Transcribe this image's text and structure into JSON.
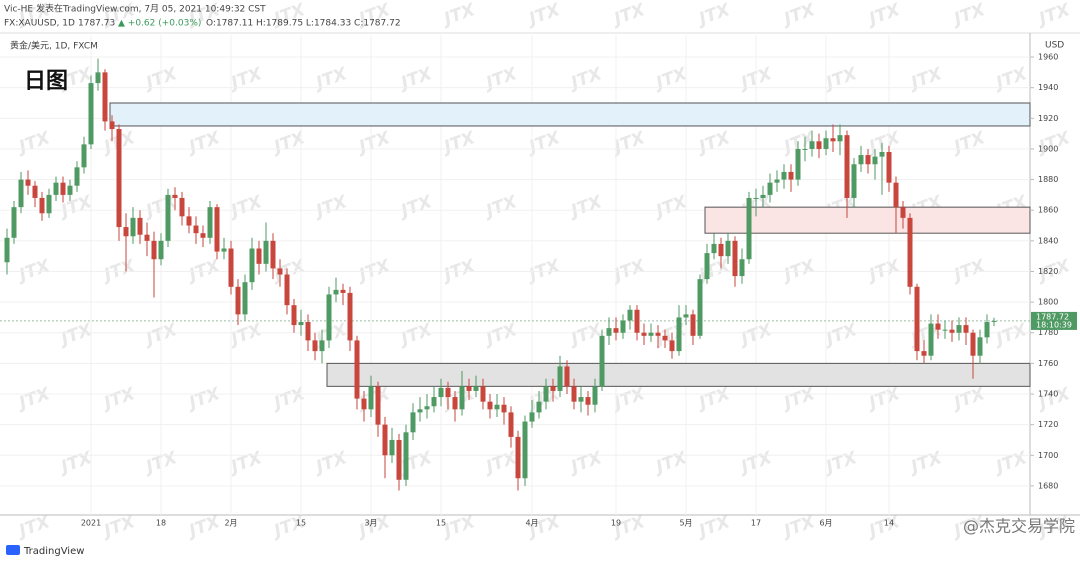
{
  "header": {
    "line1": "Vic-HE 发表在TradingView.com, 7月 05, 2021 10:49:32 CST",
    "symbol": "FX:XAUUSD, 1D",
    "price": "1787.73",
    "change": "▲ +0.62 (+0.03%)",
    "ohlc": "O:1787.11 H:1789.75 L:1784.33 C:1787.72"
  },
  "footer": {
    "logo": "TradingView",
    "credit": "@杰克交易学院"
  },
  "chart_data": {
    "type": "candlestick",
    "title": "黄金/美元, 1D, FXCM",
    "annotation": "日图",
    "y_axis_label": "USD",
    "watermark": "JTX",
    "up_color": "#4f9a63",
    "down_color": "#c9463d",
    "grid": true,
    "last_price": 1787.72,
    "countdown": "18:10:39",
    "ylim": [
      1661,
      1974.4
    ],
    "yticks": [
      1680,
      1700,
      1720,
      1740,
      1760,
      1780,
      1800,
      1820,
      1840,
      1860,
      1880,
      1900,
      1920,
      1940,
      1960
    ],
    "zones": [
      {
        "low": 1915,
        "high": 1930,
        "color": "#e3f1fb"
      },
      {
        "low": 1845,
        "high": 1862,
        "color": "#fbe4e4"
      },
      {
        "low": 1745,
        "high": 1760,
        "color": "#e2e2e2"
      }
    ],
    "categories": [
      null,
      null,
      null,
      null,
      null,
      null,
      null,
      null,
      null,
      null,
      null,
      null,
      "2021",
      null,
      null,
      null,
      null,
      null,
      null,
      null,
      null,
      null,
      "18",
      null,
      null,
      null,
      null,
      null,
      null,
      null,
      null,
      null,
      "2月",
      null,
      null,
      null,
      null,
      null,
      null,
      null,
      null,
      null,
      "15",
      null,
      null,
      null,
      null,
      null,
      null,
      null,
      null,
      null,
      "3月",
      null,
      null,
      null,
      null,
      null,
      null,
      null,
      null,
      null,
      "15",
      null,
      null,
      null,
      null,
      null,
      null,
      null,
      null,
      null,
      null,
      null,
      null,
      "4月",
      null,
      null,
      null,
      null,
      null,
      null,
      null,
      null,
      null,
      null,
      null,
      "19",
      null,
      null,
      null,
      null,
      null,
      null,
      null,
      null,
      null,
      "5月",
      null,
      null,
      null,
      null,
      null,
      null,
      null,
      null,
      null,
      "17",
      null,
      null,
      null,
      null,
      null,
      null,
      null,
      null,
      null,
      "6月",
      null,
      null,
      null,
      null,
      null,
      null,
      null,
      null,
      "14",
      null,
      null,
      null,
      null,
      null,
      null,
      null,
      null,
      null,
      null,
      null,
      null,
      null,
      null,
      null
    ],
    "open": [
      1826,
      1842,
      1862,
      1880,
      1876,
      1868,
      1858,
      1870,
      1878,
      1870,
      1876,
      1888,
      1903,
      1943,
      1950,
      1918,
      1913,
      1849,
      1843,
      1855,
      1844,
      1840,
      1828,
      1840,
      1870,
      1868,
      1856,
      1850,
      1845,
      1842,
      1862,
      1833,
      1835,
      1810,
      1792,
      1813,
      1835,
      1825,
      1840,
      1822,
      1818,
      1798,
      1785,
      1787,
      1775,
      1768,
      1775,
      1805,
      1808,
      1806,
      1775,
      1737,
      1730,
      1745,
      1720,
      1700,
      1710,
      1684,
      1715,
      1728,
      1730,
      1732,
      1738,
      1744,
      1738,
      1730,
      1745,
      1742,
      1745,
      1735,
      1730,
      1733,
      1728,
      1712,
      1685,
      1722,
      1728,
      1735,
      1745,
      1742,
      1758,
      1745,
      1735,
      1738,
      1733,
      1745,
      1778,
      1783,
      1780,
      1788,
      1795,
      1780,
      1778,
      1780,
      1778,
      1775,
      1768,
      1790,
      1792,
      1778,
      1815,
      1832,
      1838,
      1830,
      1840,
      1817,
      1828,
      1868,
      1868,
      1870,
      1878,
      1880,
      1885,
      1880,
      1900,
      1900,
      1905,
      1900,
      1907,
      1905,
      1909,
      1868,
      1890,
      1896,
      1890,
      1895,
      1898,
      1878,
      1862,
      1855,
      1810,
      1768,
      1765,
      1786,
      1782,
      1782,
      1780,
      1785,
      1780,
      1765,
      1777,
      1787.11
    ],
    "high": [
      1848,
      1866,
      1885,
      1886,
      1879,
      1872,
      1874,
      1882,
      1882,
      1880,
      1892,
      1908,
      1948,
      1959,
      1952,
      1922,
      1916,
      1858,
      1862,
      1860,
      1852,
      1846,
      1845,
      1874,
      1875,
      1872,
      1862,
      1856,
      1850,
      1866,
      1864,
      1842,
      1840,
      1815,
      1818,
      1842,
      1840,
      1852,
      1845,
      1828,
      1822,
      1802,
      1795,
      1792,
      1780,
      1782,
      1810,
      1816,
      1812,
      1810,
      1778,
      1742,
      1752,
      1748,
      1725,
      1718,
      1714,
      1720,
      1734,
      1738,
      1740,
      1745,
      1750,
      1748,
      1742,
      1755,
      1750,
      1752,
      1750,
      1740,
      1740,
      1738,
      1732,
      1716,
      1726,
      1736,
      1742,
      1750,
      1750,
      1765,
      1762,
      1750,
      1745,
      1742,
      1750,
      1782,
      1790,
      1790,
      1792,
      1798,
      1798,
      1786,
      1786,
      1785,
      1782,
      1780,
      1798,
      1798,
      1795,
      1818,
      1838,
      1845,
      1842,
      1845,
      1843,
      1835,
      1872,
      1874,
      1876,
      1884,
      1886,
      1890,
      1890,
      1905,
      1908,
      1912,
      1910,
      1912,
      1916,
      1916,
      1912,
      1894,
      1902,
      1900,
      1900,
      1904,
      1902,
      1882,
      1866,
      1858,
      1812,
      1775,
      1792,
      1792,
      1788,
      1788,
      1790,
      1790,
      1782,
      1782,
      1792,
      1789.75
    ],
    "low": [
      1818,
      1838,
      1858,
      1870,
      1862,
      1853,
      1855,
      1866,
      1865,
      1866,
      1872,
      1884,
      1900,
      1938,
      1912,
      1905,
      1840,
      1820,
      1838,
      1838,
      1830,
      1803,
      1824,
      1836,
      1860,
      1850,
      1845,
      1838,
      1836,
      1838,
      1828,
      1828,
      1805,
      1785,
      1788,
      1808,
      1818,
      1820,
      1815,
      1810,
      1792,
      1780,
      1778,
      1768,
      1762,
      1760,
      1770,
      1800,
      1798,
      1768,
      1730,
      1722,
      1725,
      1712,
      1685,
      1695,
      1677,
      1680,
      1710,
      1722,
      1724,
      1728,
      1732,
      1730,
      1722,
      1726,
      1736,
      1738,
      1730,
      1724,
      1725,
      1720,
      1705,
      1677,
      1680,
      1718,
      1724,
      1730,
      1735,
      1738,
      1740,
      1730,
      1728,
      1726,
      1728,
      1742,
      1772,
      1775,
      1776,
      1782,
      1775,
      1772,
      1774,
      1770,
      1770,
      1763,
      1765,
      1785,
      1772,
      1776,
      1812,
      1828,
      1822,
      1825,
      1810,
      1812,
      1825,
      1856,
      1862,
      1865,
      1872,
      1874,
      1872,
      1876,
      1892,
      1895,
      1894,
      1896,
      1898,
      1896,
      1855,
      1862,
      1885,
      1884,
      1880,
      1870,
      1872,
      1845,
      1848,
      1805,
      1762,
      1760,
      1762,
      1776,
      1776,
      1774,
      1775,
      1772,
      1750,
      1760,
      1773,
      1784.33
    ],
    "close": [
      1842,
      1862,
      1880,
      1876,
      1868,
      1858,
      1870,
      1878,
      1870,
      1876,
      1888,
      1903,
      1943,
      1950,
      1918,
      1913,
      1849,
      1843,
      1855,
      1844,
      1840,
      1828,
      1840,
      1870,
      1868,
      1856,
      1850,
      1845,
      1842,
      1862,
      1833,
      1835,
      1810,
      1792,
      1813,
      1835,
      1825,
      1840,
      1822,
      1818,
      1798,
      1785,
      1787,
      1775,
      1768,
      1775,
      1805,
      1808,
      1806,
      1775,
      1737,
      1730,
      1745,
      1720,
      1700,
      1710,
      1684,
      1715,
      1728,
      1730,
      1732,
      1738,
      1744,
      1738,
      1730,
      1745,
      1742,
      1745,
      1735,
      1730,
      1733,
      1728,
      1712,
      1685,
      1722,
      1728,
      1735,
      1745,
      1742,
      1758,
      1745,
      1735,
      1738,
      1733,
      1745,
      1778,
      1783,
      1780,
      1788,
      1795,
      1780,
      1778,
      1780,
      1778,
      1775,
      1768,
      1790,
      1792,
      1778,
      1815,
      1832,
      1838,
      1830,
      1840,
      1817,
      1828,
      1868,
      1868,
      1870,
      1878,
      1880,
      1885,
      1880,
      1900,
      1900,
      1905,
      1900,
      1907,
      1905,
      1909,
      1868,
      1890,
      1896,
      1890,
      1895,
      1898,
      1878,
      1862,
      1855,
      1810,
      1768,
      1765,
      1786,
      1782,
      1782,
      1780,
      1785,
      1780,
      1765,
      1777,
      1787,
      1787.72
    ]
  }
}
